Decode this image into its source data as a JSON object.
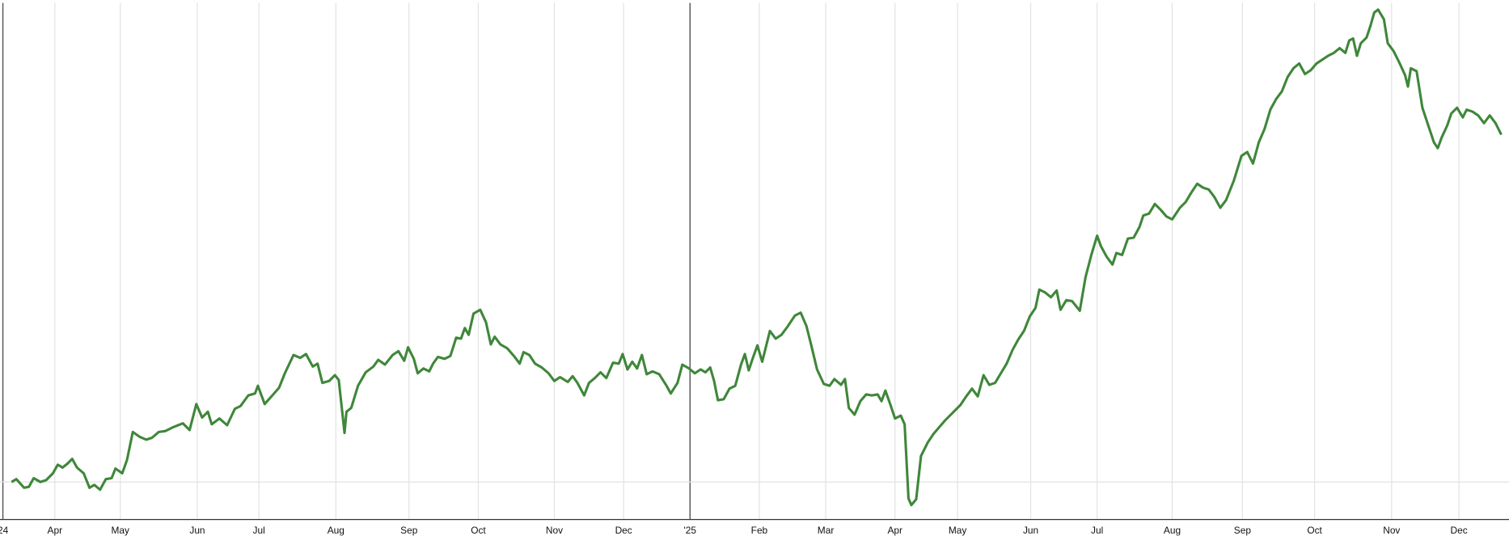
{
  "chart_data": {
    "type": "line",
    "color": "#3f873a",
    "grid": true,
    "baseline": 0,
    "xlim": [
      0,
      1568
    ],
    "ylim": [
      -39,
      498
    ],
    "xticks": [
      {
        "value": 3,
        "label": "24"
      },
      {
        "value": 57,
        "label": "Apr"
      },
      {
        "value": 125,
        "label": "May"
      },
      {
        "value": 205,
        "label": "Jun"
      },
      {
        "value": 269,
        "label": "Jul"
      },
      {
        "value": 349,
        "label": "Aug"
      },
      {
        "value": 425,
        "label": "Sep"
      },
      {
        "value": 497,
        "label": "Oct"
      },
      {
        "value": 576,
        "label": "Nov"
      },
      {
        "value": 648,
        "label": "Dec"
      },
      {
        "value": 717,
        "label": "'25"
      },
      {
        "value": 789,
        "label": "Feb"
      },
      {
        "value": 858,
        "label": "Mar"
      },
      {
        "value": 930,
        "label": "Apr"
      },
      {
        "value": 995,
        "label": "May"
      },
      {
        "value": 1071,
        "label": "Jun"
      },
      {
        "value": 1140,
        "label": "Jul"
      },
      {
        "value": 1218,
        "label": "Aug"
      },
      {
        "value": 1291,
        "label": "Sep"
      },
      {
        "value": 1366,
        "label": "Oct"
      },
      {
        "value": 1446,
        "label": "Nov"
      },
      {
        "value": 1516,
        "label": "Dec"
      }
    ],
    "x": [
      12,
      17,
      25,
      30,
      35,
      42,
      48,
      55,
      60,
      65,
      70,
      75,
      80,
      87,
      93,
      98,
      104,
      110,
      116,
      120,
      127,
      132,
      138,
      145,
      152,
      158,
      165,
      172,
      180,
      190,
      197,
      204,
      210,
      216,
      220,
      228,
      236,
      244,
      250,
      258,
      265,
      268,
      275,
      283,
      290,
      296,
      305,
      312,
      318,
      325,
      330,
      335,
      342,
      348,
      352,
      358,
      360,
      365,
      372,
      380,
      388,
      393,
      400,
      408,
      414,
      420,
      424,
      430,
      434,
      440,
      446,
      450,
      455,
      462,
      468,
      474,
      479,
      483,
      487,
      492,
      499,
      505,
      510,
      514,
      520,
      527,
      534,
      540,
      544,
      550,
      556,
      563,
      570,
      576,
      582,
      590,
      595,
      600,
      607,
      612,
      618,
      624,
      630,
      637,
      643,
      647,
      652,
      657,
      662,
      667,
      672,
      678,
      685,
      692,
      697,
      704,
      709,
      716,
      722,
      728,
      733,
      738,
      742,
      746,
      752,
      758,
      764,
      770,
      774,
      778,
      782,
      787,
      792,
      800,
      806,
      812,
      818,
      826,
      832,
      838,
      843,
      849,
      856,
      862,
      867,
      874,
      878,
      882,
      888,
      894,
      900,
      906,
      912,
      916,
      920,
      925,
      930,
      936,
      940,
      944,
      947,
      952,
      957,
      964,
      970,
      976,
      982,
      990,
      998,
      1004,
      1010,
      1016,
      1022,
      1028,
      1034,
      1040,
      1046,
      1052,
      1058,
      1064,
      1070,
      1076,
      1080,
      1086,
      1092,
      1098,
      1102,
      1108,
      1114,
      1122,
      1128,
      1134,
      1140,
      1144,
      1150,
      1156,
      1160,
      1166,
      1172,
      1178,
      1184,
      1188,
      1194,
      1200,
      1206,
      1212,
      1218,
      1226,
      1232,
      1238,
      1244,
      1250,
      1256,
      1262,
      1268,
      1274,
      1282,
      1290,
      1296,
      1302,
      1308,
      1314,
      1320,
      1326,
      1332,
      1338,
      1344,
      1350,
      1356,
      1362,
      1368,
      1374,
      1380,
      1386,
      1392,
      1398,
      1402,
      1406,
      1410,
      1414,
      1420,
      1424,
      1428,
      1432,
      1438,
      1442,
      1448,
      1454,
      1460,
      1463,
      1466,
      1472,
      1478,
      1484,
      1490,
      1494,
      1498,
      1504,
      1508,
      1514,
      1520,
      1524,
      1530,
      1536,
      1542,
      1548,
      1554,
      1560
    ],
    "values": [
      0,
      3,
      -6,
      -5,
      4,
      0,
      2,
      9,
      18,
      15,
      19,
      24,
      15,
      9,
      -6,
      -3,
      -8,
      3,
      4,
      14,
      9,
      23,
      52,
      47,
      44,
      46,
      52,
      53,
      57,
      61,
      54,
      81,
      67,
      73,
      60,
      66,
      59,
      76,
      79,
      90,
      92,
      100,
      81,
      90,
      98,
      113,
      132,
      129,
      133,
      120,
      123,
      103,
      105,
      111,
      106,
      51,
      73,
      77,
      100,
      114,
      120,
      127,
      122,
      132,
      136,
      126,
      140,
      128,
      113,
      118,
      115,
      123,
      130,
      128,
      131,
      150,
      149,
      160,
      153,
      175,
      179,
      166,
      143,
      151,
      143,
      139,
      131,
      123,
      135,
      132,
      123,
      119,
      113,
      105,
      109,
      104,
      110,
      103,
      90,
      103,
      108,
      114,
      108,
      124,
      123,
      133,
      117,
      125,
      118,
      132,
      112,
      115,
      112,
      101,
      92,
      103,
      122,
      118,
      113,
      117,
      114,
      119,
      105,
      85,
      86,
      97,
      100,
      122,
      133,
      116,
      128,
      142,
      125,
      157,
      149,
      153,
      161,
      173,
      176,
      162,
      142,
      117,
      102,
      100,
      107,
      101,
      107,
      77,
      70,
      84,
      91,
      90,
      91,
      84,
      95,
      81,
      66,
      69,
      60,
      -17,
      -24,
      -18,
      27,
      41,
      50,
      57,
      64,
      72,
      80,
      89,
      97,
      89,
      111,
      101,
      103,
      113,
      123,
      137,
      148,
      157,
      172,
      181,
      200,
      197,
      192,
      199,
      179,
      189,
      188,
      178,
      213,
      236,
      256,
      245,
      234,
      226,
      238,
      236,
      253,
      254,
      265,
      277,
      279,
      289,
      283,
      276,
      273,
      285,
      291,
      301,
      310,
      306,
      304,
      296,
      285,
      293,
      313,
      339,
      343,
      331,
      353,
      367,
      387,
      398,
      406,
      421,
      430,
      435,
      424,
      428,
      435,
      439,
      443,
      446,
      451,
      446,
      459,
      461,
      443,
      456,
      462,
      474,
      488,
      491,
      481,
      456,
      448,
      436,
      423,
      411,
      430,
      427,
      389,
      371,
      353,
      347,
      358,
      371,
      383,
      389,
      379,
      387,
      385,
      381,
      373,
      381,
      373,
      361
    ]
  }
}
